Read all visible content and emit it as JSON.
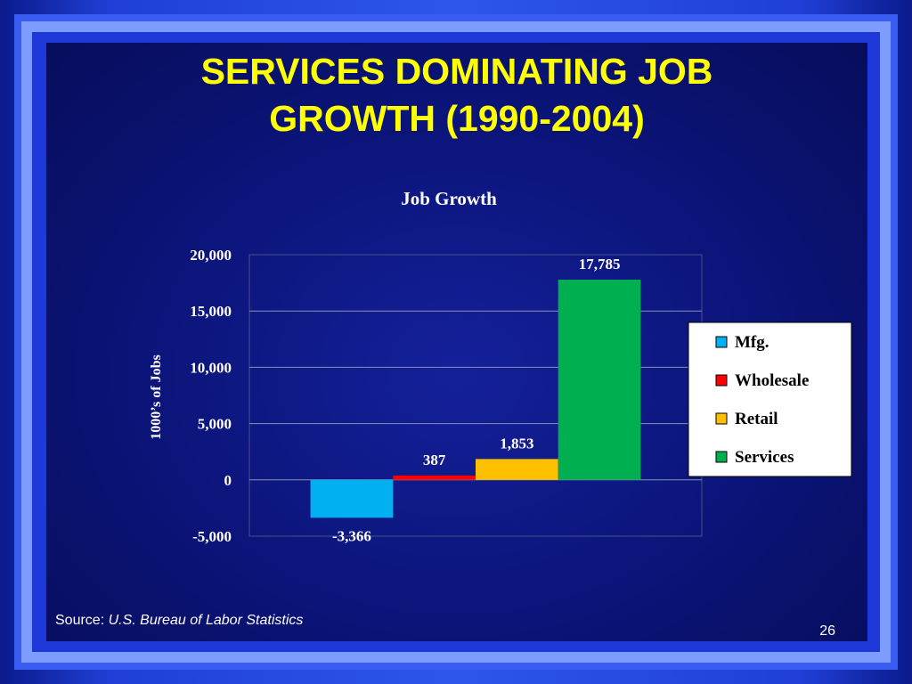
{
  "slide": {
    "title_line1": "SERVICES DOMINATING JOB",
    "title_line2": "GROWTH (1990-2004)",
    "source_label": "Source:",
    "source_name": "U.S. Bureau of Labor  Statistics",
    "page_number": "26"
  },
  "chart_data": {
    "type": "bar",
    "title": "Job Growth",
    "ylabel": "1000’s  of Jobs",
    "xlabel": "",
    "ylim": [
      -5000,
      20000
    ],
    "yticks": [
      20000,
      15000,
      10000,
      5000,
      0,
      -5000
    ],
    "ytick_labels": [
      "20,000",
      "15,000",
      "10,000",
      "5,000",
      "0",
      "-5,000"
    ],
    "grid": true,
    "legend_position": "right",
    "series": [
      {
        "name": "Mfg.",
        "value": -3366,
        "label": "-3,366",
        "color": "#00b0f0"
      },
      {
        "name": "Wholesale",
        "value": 387,
        "label": "387",
        "color": "#ff0000"
      },
      {
        "name": "Retail",
        "value": 1853,
        "label": "1,853",
        "color": "#ffc000"
      },
      {
        "name": "Services",
        "value": 17785,
        "label": "17,785",
        "color": "#00b050"
      }
    ]
  }
}
